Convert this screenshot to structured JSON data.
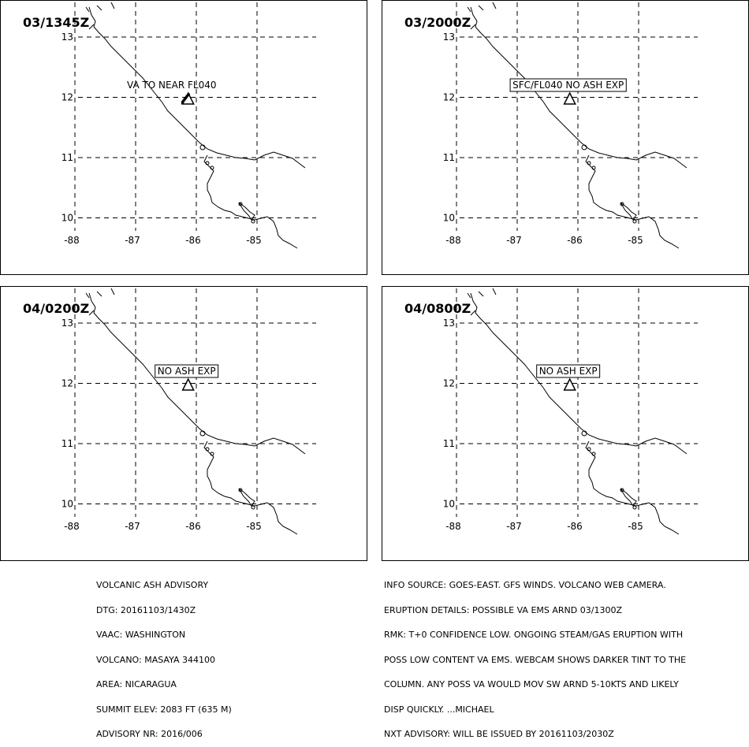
{
  "panels": [
    {
      "time": "03/1345Z",
      "label": "VA TO NEAR FL040",
      "boxed": false,
      "ash": true
    },
    {
      "time": "03/2000Z",
      "label": "SFC/FL040 NO ASH EXP",
      "boxed": true,
      "ash": false
    },
    {
      "time": "04/0200Z",
      "label": "NO ASH EXP",
      "boxed": true,
      "ash": false
    },
    {
      "time": "04/0800Z",
      "label": "NO ASH EXP",
      "boxed": true,
      "ash": false
    }
  ],
  "map": {
    "lat_ticks": [
      "13",
      "12",
      "11",
      "10"
    ],
    "lon_ticks": [
      "-88",
      "-87",
      "-86",
      "-85"
    ],
    "volcano": {
      "lon": -86.16,
      "lat": 11.98
    }
  },
  "advisory_left": [
    "VOLCANIC ASH ADVISORY",
    "DTG: 20161103/1430Z",
    "VAAC: WASHINGTON",
    "VOLCANO: MASAYA 344100",
    "AREA: NICARAGUA",
    "SUMMIT ELEV: 2083 FT (635 M)",
    "ADVISORY NR: 2016/006"
  ],
  "advisory_right": [
    "INFO SOURCE: GOES-EAST. GFS WINDS. VOLCANO WEB CAMERA.",
    "ERUPTION DETAILS: POSSIBLE VA EMS ARND 03/1300Z",
    "RMK: T+0 CONFIDENCE LOW. ONGOING STEAM/GAS ERUPTION WITH",
    "POSS LOW CONTENT VA EMS. WEBCAM SHOWS DARKER TINT TO THE",
    "COLUMN. ANY POSS VA WOULD MOV SW ARND 5-10KTS AND LIKELY",
    "DISP QUICKLY. ...MICHAEL",
    "NXT ADVISORY: WILL BE ISSUED BY 20161103/2030Z"
  ]
}
